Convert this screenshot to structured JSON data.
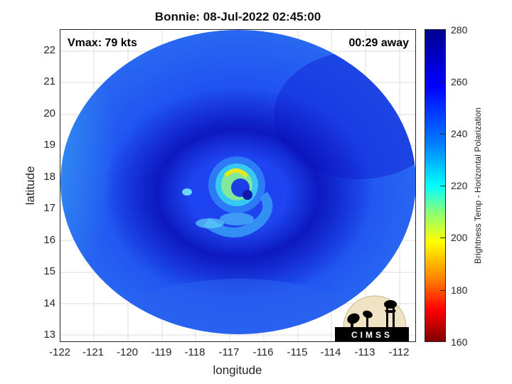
{
  "title": "Bonnie: 08-Jul-2022 02:45:00",
  "vmax_label": "Vmax: 79 kts",
  "time_away_label": "00:29 away",
  "x_axis": {
    "label": "longitude",
    "ticks": [
      "-122",
      "-121",
      "-120",
      "-119",
      "-118",
      "-117",
      "-116",
      "-115",
      "-114",
      "-113",
      "-112"
    ],
    "range": [
      -122.3,
      -111.3
    ]
  },
  "y_axis": {
    "label": "latitude",
    "ticks": [
      "13",
      "14",
      "15",
      "16",
      "17",
      "18",
      "19",
      "20",
      "21",
      "22"
    ],
    "range": [
      12.8,
      22.7
    ]
  },
  "colorbar": {
    "label": "Brightness Temp - Horizontal Polarization",
    "ticks": [
      "280",
      "260",
      "240",
      "220",
      "200",
      "180",
      "160"
    ],
    "range": [
      160,
      280
    ],
    "colormap": "jet",
    "colors": [
      "#00008f",
      "#0000ff",
      "#00ffff",
      "#ffff00",
      "#ff0000",
      "#800000"
    ]
  },
  "logo": {
    "text": "CIMSS"
  },
  "storm_center": {
    "lon": -116.6,
    "lat": 17.5
  },
  "grid": true
}
